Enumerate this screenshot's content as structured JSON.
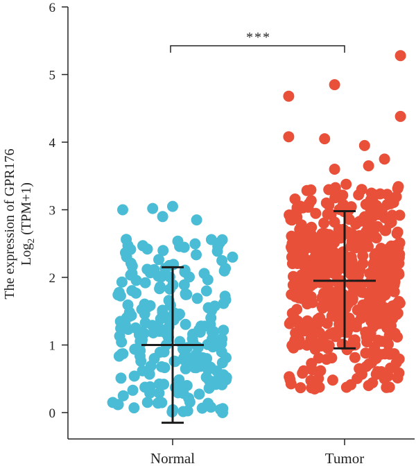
{
  "chart_data": {
    "type": "scatter",
    "ylabel_line1": "The expression of GPR176",
    "ylabel_line2_prefix": "Log",
    "ylabel_line2_sub": "2",
    "ylabel_line2_suffix": " (TPM+1)",
    "ylim": [
      0,
      6
    ],
    "yticks": [
      "0",
      "1",
      "2",
      "3",
      "4",
      "5",
      "6"
    ],
    "categories": [
      "Normal",
      "Tumor"
    ],
    "significance": "***",
    "grid": false,
    "legend": "none",
    "series": [
      {
        "category": "Normal",
        "color": "#4bbcd6",
        "mean": 1.0,
        "sd_low": -0.15,
        "sd_high": 2.15,
        "n": 220,
        "min": 0.0,
        "max": 3.05
      },
      {
        "category": "Tumor",
        "color": "#e8503a",
        "mean": 1.95,
        "sd_low": 0.95,
        "sd_high": 2.98,
        "n": 520,
        "min": 0.35,
        "max": 5.28
      }
    ],
    "outliers": {
      "Normal": [
        [
          -0.25,
          3.0
        ],
        [
          -0.1,
          3.02
        ],
        [
          0.0,
          3.05
        ],
        [
          0.12,
          2.85
        ],
        [
          -0.05,
          2.9
        ],
        [
          -0.3,
          0.15
        ],
        [
          0.25,
          0.0
        ],
        [
          0.3,
          2.3
        ]
      ],
      "Tumor": [
        [
          0.28,
          5.28
        ],
        [
          -0.28,
          4.68
        ],
        [
          -0.05,
          4.85
        ],
        [
          0.28,
          4.38
        ],
        [
          -0.28,
          4.08
        ],
        [
          -0.1,
          4.05
        ],
        [
          0.1,
          3.95
        ],
        [
          0.12,
          3.65
        ],
        [
          -0.05,
          3.6
        ],
        [
          0.2,
          3.75
        ],
        [
          -0.15,
          0.35
        ],
        [
          0.12,
          0.4
        ],
        [
          0.2,
          0.5
        ]
      ]
    }
  }
}
